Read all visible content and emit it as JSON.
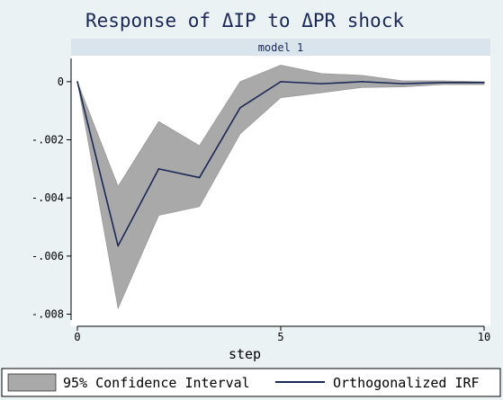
{
  "chart_data": {
    "type": "line",
    "title": "Response of ΔIP to ΔPR shock",
    "panel_label": "model 1",
    "xlabel": "step",
    "ylabel": "",
    "xlim": [
      0,
      10
    ],
    "ylim": [
      -0.0082,
      0.0008
    ],
    "x_ticks": [
      0,
      5,
      10
    ],
    "y_ticks": [
      0,
      -0.002,
      -0.004,
      -0.006,
      -0.008
    ],
    "y_tick_labels": [
      "0",
      "-.002",
      "-.004",
      "-.006",
      "-.008"
    ],
    "grid": false,
    "legend_position": "bottom",
    "x": [
      0,
      1,
      2,
      3,
      4,
      5,
      6,
      7,
      8,
      9,
      10
    ],
    "series": [
      {
        "name": "95% Confidence Interval",
        "kind": "band",
        "upper": [
          0,
          -0.0036,
          -0.00137,
          -0.0022,
          0,
          0.00057,
          0.00028,
          0.00022,
          3e-05,
          3e-05,
          0.0
        ],
        "lower": [
          0,
          -0.0078,
          -0.0046,
          -0.0043,
          -0.0018,
          -0.00055,
          -0.00038,
          -0.0002,
          -0.00018,
          -0.0001,
          -0.0001
        ]
      },
      {
        "name": "Orthogonalized IRF",
        "kind": "line",
        "values": [
          0,
          -0.00565,
          -0.003,
          -0.0033,
          -0.0009,
          0,
          -7e-05,
          0,
          -7e-05,
          -3e-05,
          -3e-05
        ]
      }
    ],
    "colors": {
      "band": "#a9a9a9",
      "line": "#1a2857",
      "plot_bg": "#ffffff",
      "page_bg": "#eaf2f3",
      "strip_bg": "#d9e4ec",
      "title": "#1a2857"
    }
  }
}
